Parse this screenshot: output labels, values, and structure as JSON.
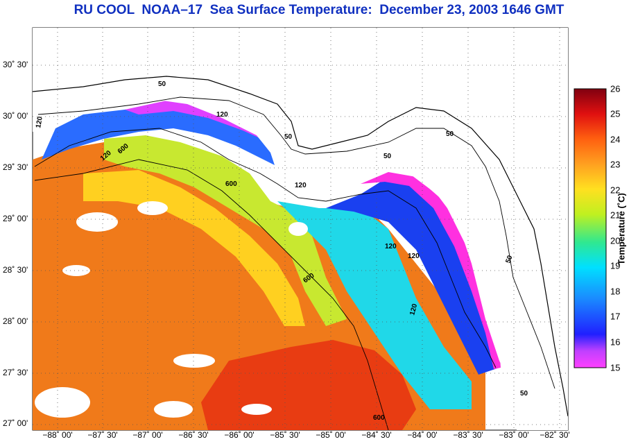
{
  "title": "RU COOL  NOAA–17  Sea Surface Temperature:  December 23, 2003 1646 GMT",
  "latitude_labels": [
    "30˚ 30'",
    "30˚ 00'",
    "29˚ 30'",
    "29˚ 00'",
    "28˚ 30'",
    "28˚ 00'",
    "27˚ 30'",
    "27˚ 00'"
  ],
  "longitude_labels": [
    "−88˚ 00'",
    "−87˚ 30'",
    "−87˚ 00'",
    "−86˚ 30'",
    "−86˚ 00'",
    "−85˚ 30'",
    "−85˚ 00'",
    "−84˚ 30'",
    "−84˚ 00'",
    "−83˚ 30'",
    "−83˚ 00'",
    "−82˚ 30'"
  ],
  "colorbar": {
    "label": "Temperature (˚C)",
    "ticks": [
      "26",
      "25",
      "24",
      "23",
      "22",
      "21",
      "20",
      "19",
      "18",
      "17",
      "16",
      "15"
    ],
    "min": 15,
    "max": 26
  },
  "contour_labels": [
    "50",
    "50",
    "50",
    "50",
    "50",
    "50",
    "120",
    "120",
    "120",
    "120",
    "120",
    "120",
    "600",
    "600",
    "600",
    "600",
    "120"
  ],
  "colors": {
    "title": "#1030c0",
    "warm": "#f07a1a",
    "cold": "#1a3cff",
    "magenta": "#ff30e0"
  }
}
